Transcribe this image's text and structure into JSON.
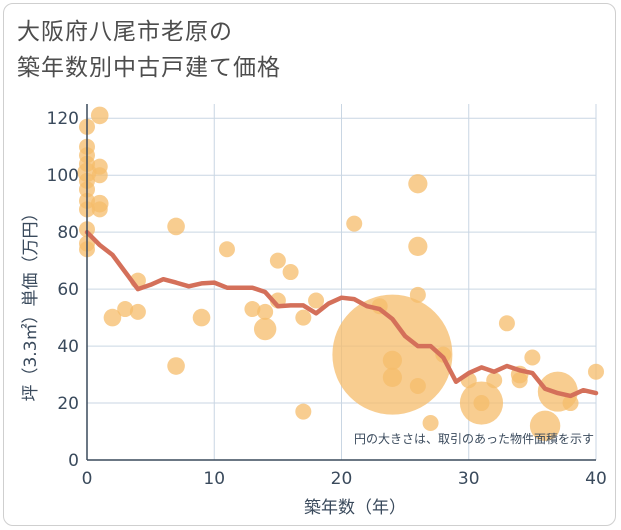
{
  "title_lines": [
    "大阪府八尾市老原の",
    "築年数別中古戸建て価格"
  ],
  "chart_data": {
    "type": "scatter",
    "title": "大阪府八尾市老原の築年数別中古戸建て価格",
    "xlabel": "築年数（年）",
    "ylabel": "坪（3.3㎡）単価（万円）",
    "xlim": [
      0,
      40
    ],
    "ylim": [
      0,
      125
    ],
    "xticks": [
      0,
      10,
      20,
      30,
      40
    ],
    "yticks": [
      0,
      20,
      40,
      60,
      80,
      100,
      120
    ],
    "grid": true,
    "note": "円の大きさは、取引のあった物件面積を示す",
    "colors": {
      "bubble": "#f5bc6b",
      "line": "#d4705a",
      "grid": "#c9d6e3"
    },
    "scatter": [
      {
        "x": 0,
        "y": 117,
        "size": 1
      },
      {
        "x": 0,
        "y": 110,
        "size": 1
      },
      {
        "x": 0,
        "y": 107,
        "size": 1
      },
      {
        "x": 0,
        "y": 104,
        "size": 1
      },
      {
        "x": 0,
        "y": 101,
        "size": 1.2
      },
      {
        "x": 0,
        "y": 98,
        "size": 1
      },
      {
        "x": 0,
        "y": 95,
        "size": 1
      },
      {
        "x": 0,
        "y": 91,
        "size": 1
      },
      {
        "x": 0,
        "y": 88,
        "size": 1
      },
      {
        "x": 0,
        "y": 81,
        "size": 1
      },
      {
        "x": 0,
        "y": 76,
        "size": 1
      },
      {
        "x": 0,
        "y": 74,
        "size": 1
      },
      {
        "x": 1,
        "y": 121,
        "size": 1.1
      },
      {
        "x": 1,
        "y": 103,
        "size": 1
      },
      {
        "x": 1,
        "y": 100,
        "size": 1
      },
      {
        "x": 1,
        "y": 90,
        "size": 1.1
      },
      {
        "x": 1,
        "y": 88,
        "size": 1
      },
      {
        "x": 2,
        "y": 50,
        "size": 1.1
      },
      {
        "x": 3,
        "y": 53,
        "size": 1
      },
      {
        "x": 4,
        "y": 63,
        "size": 1
      },
      {
        "x": 4,
        "y": 52,
        "size": 1
      },
      {
        "x": 7,
        "y": 82,
        "size": 1.1
      },
      {
        "x": 7,
        "y": 33,
        "size": 1.1
      },
      {
        "x": 9,
        "y": 50,
        "size": 1.1
      },
      {
        "x": 11,
        "y": 74,
        "size": 1
      },
      {
        "x": 13,
        "y": 53,
        "size": 1
      },
      {
        "x": 14,
        "y": 52,
        "size": 1
      },
      {
        "x": 14,
        "y": 46,
        "size": 1.4
      },
      {
        "x": 15,
        "y": 70,
        "size": 1
      },
      {
        "x": 15,
        "y": 56,
        "size": 1
      },
      {
        "x": 16,
        "y": 66,
        "size": 1
      },
      {
        "x": 17,
        "y": 50,
        "size": 1
      },
      {
        "x": 17,
        "y": 17,
        "size": 1
      },
      {
        "x": 18,
        "y": 56,
        "size": 1
      },
      {
        "x": 21,
        "y": 83,
        "size": 1
      },
      {
        "x": 23,
        "y": 54,
        "size": 1
      },
      {
        "x": 24,
        "y": 37,
        "size": 7.5
      },
      {
        "x": 24,
        "y": 35,
        "size": 1.2
      },
      {
        "x": 24,
        "y": 29,
        "size": 1.2
      },
      {
        "x": 26,
        "y": 97,
        "size": 1.2
      },
      {
        "x": 26,
        "y": 75,
        "size": 1.2
      },
      {
        "x": 26,
        "y": 58,
        "size": 1
      },
      {
        "x": 26,
        "y": 26,
        "size": 1
      },
      {
        "x": 27,
        "y": 13,
        "size": 1
      },
      {
        "x": 28,
        "y": 37,
        "size": 1
      },
      {
        "x": 30,
        "y": 28,
        "size": 1
      },
      {
        "x": 31,
        "y": 20,
        "size": 2.7
      },
      {
        "x": 31,
        "y": 20,
        "size": 1
      },
      {
        "x": 32,
        "y": 28,
        "size": 1
      },
      {
        "x": 33,
        "y": 48,
        "size": 1
      },
      {
        "x": 34,
        "y": 30,
        "size": 1.1
      },
      {
        "x": 34,
        "y": 28,
        "size": 1
      },
      {
        "x": 35,
        "y": 36,
        "size": 1
      },
      {
        "x": 36,
        "y": 12,
        "size": 1.9
      },
      {
        "x": 37,
        "y": 24,
        "size": 2.5
      },
      {
        "x": 38,
        "y": 20,
        "size": 1
      },
      {
        "x": 40,
        "y": 31,
        "size": 1
      }
    ],
    "trend": [
      {
        "x": 0,
        "y": 80
      },
      {
        "x": 1,
        "y": 75.5
      },
      {
        "x": 2,
        "y": 72
      },
      {
        "x": 3,
        "y": 66
      },
      {
        "x": 4,
        "y": 60
      },
      {
        "x": 5,
        "y": 61.5
      },
      {
        "x": 6,
        "y": 63.5
      },
      {
        "x": 7,
        "y": 62.3
      },
      {
        "x": 8,
        "y": 61
      },
      {
        "x": 9,
        "y": 62
      },
      {
        "x": 10,
        "y": 62.3
      },
      {
        "x": 11,
        "y": 60.5
      },
      {
        "x": 12,
        "y": 60.5
      },
      {
        "x": 13,
        "y": 60.5
      },
      {
        "x": 14,
        "y": 59
      },
      {
        "x": 15,
        "y": 54
      },
      {
        "x": 16,
        "y": 54.3
      },
      {
        "x": 17,
        "y": 54.3
      },
      {
        "x": 18,
        "y": 51.5
      },
      {
        "x": 19,
        "y": 55
      },
      {
        "x": 20,
        "y": 57
      },
      {
        "x": 21,
        "y": 56.5
      },
      {
        "x": 22,
        "y": 54
      },
      {
        "x": 23,
        "y": 53
      },
      {
        "x": 24,
        "y": 49.5
      },
      {
        "x": 25,
        "y": 43.5
      },
      {
        "x": 26,
        "y": 40
      },
      {
        "x": 27,
        "y": 40
      },
      {
        "x": 28,
        "y": 36
      },
      {
        "x": 29,
        "y": 27.5
      },
      {
        "x": 30,
        "y": 30.5
      },
      {
        "x": 31,
        "y": 32.5
      },
      {
        "x": 32,
        "y": 31
      },
      {
        "x": 33,
        "y": 33
      },
      {
        "x": 34,
        "y": 31.5
      },
      {
        "x": 35,
        "y": 30.5
      },
      {
        "x": 36,
        "y": 25
      },
      {
        "x": 37,
        "y": 23.5
      },
      {
        "x": 38,
        "y": 22.5
      },
      {
        "x": 39,
        "y": 24.5
      },
      {
        "x": 40,
        "y": 23.5
      }
    ]
  }
}
